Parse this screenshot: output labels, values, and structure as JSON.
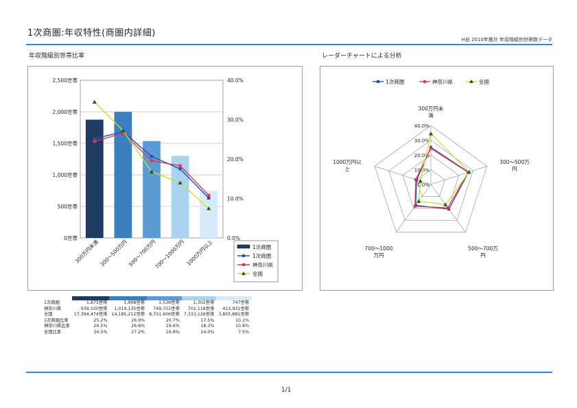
{
  "header": {
    "title": "1次商圏:年収特性(商圏内詳細)",
    "note": "H自 2010年推計 年収階級別世帯数データ"
  },
  "page_number": "1/1",
  "colors": {
    "bars": [
      "#1e3b63",
      "#3a7fc0",
      "#5b9bd5",
      "#a9d3ef",
      "#d6ebf7"
    ],
    "trade_area": "#1f4fc0",
    "kanagawa": "#e8334a",
    "nationwide": "#c8e028",
    "rule": "#3a7fd0"
  },
  "chart_data": [
    {
      "type": "bar",
      "title": "年収階級別世帯比率",
      "categories": [
        "300万円未満",
        "300～500万円",
        "500～700万円",
        "700～1000万円",
        "1000万円以上"
      ],
      "left_axis": {
        "ticks": [
          "0世帯",
          "500世帯",
          "1,000世帯",
          "1,500世帯",
          "2,000世帯",
          "2,500世帯"
        ],
        "ylim": [
          0,
          2500
        ]
      },
      "right_axis": {
        "ticks": [
          "0.0%",
          "10.0%",
          "20.0%",
          "30.0%",
          "40.0%"
        ],
        "ylim": [
          0,
          40
        ]
      },
      "series": [
        {
          "name": "1次商圏",
          "kind": "bar",
          "axis": "left",
          "values": [
            1875,
            1998,
            1536,
            1302,
            747
          ]
        },
        {
          "name": "1次商圏",
          "kind": "line",
          "axis": "right",
          "values": [
            25.2,
            26.9,
            20.7,
            17.5,
            10.1
          ]
        },
        {
          "name": "神奈川県",
          "kind": "line",
          "axis": "right",
          "values": [
            24.5,
            26.6,
            19.6,
            18.3,
            10.8
          ]
        },
        {
          "name": "全国",
          "kind": "line",
          "axis": "right",
          "values": [
            34.5,
            27.2,
            16.8,
            14.0,
            7.5
          ]
        }
      ],
      "legend": [
        "1次商圏",
        "1次商圏",
        "神奈川県",
        "全国"
      ],
      "legend_position": "bottom-right"
    },
    {
      "type": "radar",
      "title": "レーダーチャートによる分析",
      "axes": [
        "300万円未満",
        "300～500万円",
        "500～700万円",
        "700～1000万円",
        "1000万円以上"
      ],
      "axis_labels": [
        [
          "300万円未",
          "満"
        ],
        [
          "300～500万",
          "円"
        ],
        [
          "500～700万",
          "円"
        ],
        [
          "700～1000",
          "万円"
        ],
        [
          "1000万円以",
          "上"
        ]
      ],
      "ticks": [
        "0.0%",
        "10.0%",
        "20.0%",
        "30.0%",
        "40.0%"
      ],
      "rmax": 40,
      "series": [
        {
          "name": "1次商圏",
          "values": [
            25.2,
            26.9,
            20.7,
            17.5,
            10.1
          ]
        },
        {
          "name": "神奈川県",
          "values": [
            24.5,
            26.6,
            19.6,
            18.3,
            10.8
          ]
        },
        {
          "name": "全国",
          "values": [
            34.5,
            27.2,
            16.8,
            14.0,
            7.5
          ]
        }
      ],
      "legend_position": "top"
    }
  ],
  "table": {
    "rows": [
      {
        "label": "1次商圏",
        "cells": [
          "1,875世帯",
          "1,998世帯",
          "1,536世帯",
          "1,302世帯",
          "747世帯"
        ]
      },
      {
        "label": "神奈川県",
        "cells": [
          "939,100世帯",
          "1,019,135世帯",
          "749,701世帯",
          "702,118世帯",
          "413,931世帯"
        ]
      },
      {
        "label": "全国",
        "cells": [
          "17,394,474世帯",
          "14,185,212世帯",
          "8,701,906世帯",
          "7,333,126世帯",
          "3,855,881世帯"
        ]
      },
      {
        "label": "1次商圏比率",
        "cells": [
          "25.2%",
          "26.9%",
          "20.7%",
          "17.5%",
          "10.1%"
        ]
      },
      {
        "label": "神奈川県比率",
        "cells": [
          "24.5%",
          "26.6%",
          "19.6%",
          "18.3%",
          "10.8%"
        ]
      },
      {
        "label": "全国比率",
        "cells": [
          "34.5%",
          "27.2%",
          "16.8%",
          "14.0%",
          "7.5%"
        ]
      }
    ]
  }
}
